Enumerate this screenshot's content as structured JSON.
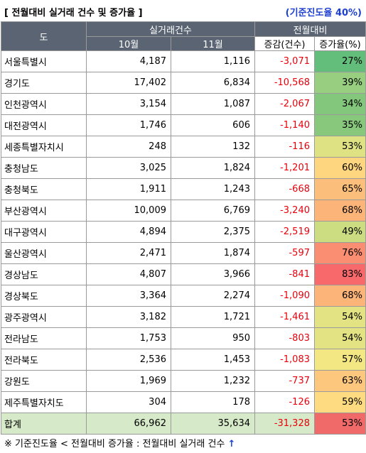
{
  "title": "[ 전월대비 실거래 건수 및 증가율 ]",
  "progress_note": "(기준진도율 40%)",
  "header": {
    "region": "도",
    "group_transactions": "실거래건수",
    "group_mom": "전월대비",
    "col_oct": "10월",
    "col_nov": "11월",
    "col_change": "증감(건수)",
    "col_rate": "증가율(%)"
  },
  "rows": [
    {
      "region": "서울특별시",
      "oct": "4,187",
      "nov": "1,116",
      "change": "-3,071",
      "rate": "27%",
      "rate_value": 27,
      "rate_color": "#63be7b"
    },
    {
      "region": "경기도",
      "oct": "17,402",
      "nov": "6,834",
      "change": "-10,568",
      "rate": "39%",
      "rate_value": 39,
      "rate_color": "#98ce7f"
    },
    {
      "region": "인천광역시",
      "oct": "3,154",
      "nov": "1,087",
      "change": "-2,067",
      "rate": "34%",
      "rate_value": 34,
      "rate_color": "#83c77d"
    },
    {
      "region": "대전광역시",
      "oct": "1,746",
      "nov": "606",
      "change": "-1,140",
      "rate": "35%",
      "rate_value": 35,
      "rate_color": "#87c87d"
    },
    {
      "region": "세종특별자치시",
      "oct": "248",
      "nov": "132",
      "change": "-116",
      "rate": "53%",
      "rate_value": 53,
      "rate_color": "#dfe283"
    },
    {
      "region": "충청남도",
      "oct": "3,025",
      "nov": "1,824",
      "change": "-1,201",
      "rate": "60%",
      "rate_value": 60,
      "rate_color": "#fed680"
    },
    {
      "region": "충청북도",
      "oct": "1,911",
      "nov": "1,243",
      "change": "-668",
      "rate": "65%",
      "rate_value": 65,
      "rate_color": "#fcbf7b"
    },
    {
      "region": "부산광역시",
      "oct": "10,009",
      "nov": "6,769",
      "change": "-3,240",
      "rate": "68%",
      "rate_value": 68,
      "rate_color": "#fcb479"
    },
    {
      "region": "대구광역시",
      "oct": "4,894",
      "nov": "2,375",
      "change": "-2,519",
      "rate": "49%",
      "rate_value": 49,
      "rate_color": "#cbdc81"
    },
    {
      "region": "울산광역시",
      "oct": "2,471",
      "nov": "1,874",
      "change": "-597",
      "rate": "76%",
      "rate_value": 76,
      "rate_color": "#f98e72"
    },
    {
      "region": "경상남도",
      "oct": "4,807",
      "nov": "3,966",
      "change": "-841",
      "rate": "83%",
      "rate_value": 83,
      "rate_color": "#f8696b"
    },
    {
      "region": "경상북도",
      "oct": "3,364",
      "nov": "2,274",
      "change": "-1,090",
      "rate": "68%",
      "rate_value": 68,
      "rate_color": "#fcb479"
    },
    {
      "region": "광주광역시",
      "oct": "3,182",
      "nov": "1,721",
      "change": "-1,461",
      "rate": "54%",
      "rate_value": 54,
      "rate_color": "#e4e383"
    },
    {
      "region": "전라남도",
      "oct": "1,753",
      "nov": "950",
      "change": "-803",
      "rate": "54%",
      "rate_value": 54,
      "rate_color": "#e4e383"
    },
    {
      "region": "전라북도",
      "oct": "2,536",
      "nov": "1,453",
      "change": "-1,083",
      "rate": "57%",
      "rate_value": 57,
      "rate_color": "#f3e783"
    },
    {
      "region": "강원도",
      "oct": "1,969",
      "nov": "1,232",
      "change": "-737",
      "rate": "63%",
      "rate_value": 63,
      "rate_color": "#fdc87d"
    },
    {
      "region": "제주특별자치도",
      "oct": "304",
      "nov": "178",
      "change": "-126",
      "rate": "59%",
      "rate_value": 59,
      "rate_color": "#fedb81"
    }
  ],
  "total": {
    "region": "합계",
    "oct": "66,962",
    "nov": "35,634",
    "change": "-31,328",
    "rate": "53%",
    "rate_value": 53,
    "rate_color": "#f06a6a"
  },
  "footer": {
    "text": "※ 기준진도율 < 전월대비 증가율 : 전월대비 실거래 건수",
    "arrow": "↑"
  },
  "colors": {
    "header_bg": "#5a6472",
    "total_bg": "#d6e9c8",
    "negative_text": "#e8000b",
    "note_text": "#1d3fd0"
  }
}
